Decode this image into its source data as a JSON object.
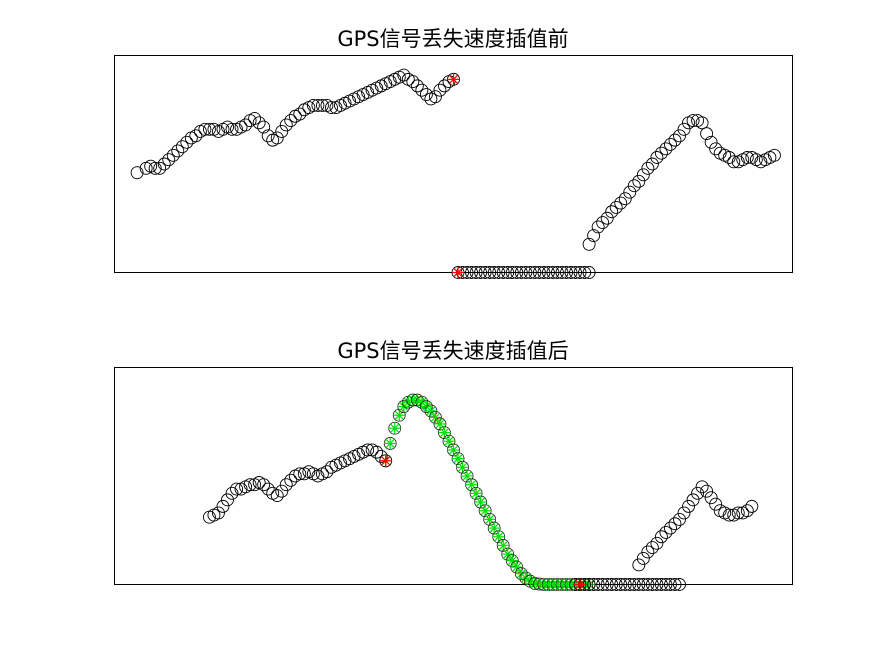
{
  "figure": {
    "background": "#ffffff",
    "marker_colors": {
      "original": "#000000",
      "endpoint": "#ff0000",
      "interpolated": "#00dd00"
    }
  },
  "chart_data": [
    {
      "type": "scatter",
      "title": "GPS信号丢失速度插值前",
      "xlabel": "",
      "ylabel": "",
      "xlim": [
        0,
        150
      ],
      "ylim": [
        0,
        10
      ],
      "axes_visible": false,
      "grid": false,
      "series": [
        {
          "marker": "circle",
          "color": "#000000",
          "x": [
            5,
            7,
            8,
            9,
            10,
            11,
            12,
            13,
            14,
            15,
            16,
            17,
            18,
            19,
            20,
            21,
            22,
            23,
            24,
            25,
            26,
            27,
            28,
            29,
            30,
            31,
            32,
            33,
            34,
            35,
            36,
            37,
            38,
            39,
            40,
            41,
            42,
            43,
            44,
            45,
            46,
            47,
            48,
            49,
            50,
            51,
            52,
            53,
            54,
            55,
            56,
            57,
            58,
            59,
            60,
            61,
            62,
            63,
            64,
            65,
            66,
            67,
            68,
            69,
            70,
            71,
            72,
            73,
            74,
            75
          ],
          "y": [
            4.6,
            4.8,
            4.9,
            4.8,
            4.8,
            5.0,
            5.2,
            5.4,
            5.6,
            5.8,
            6.0,
            6.2,
            6.3,
            6.5,
            6.6,
            6.6,
            6.6,
            6.5,
            6.6,
            6.7,
            6.6,
            6.6,
            6.7,
            6.8,
            7.0,
            7.1,
            6.9,
            6.7,
            6.3,
            6.1,
            6.2,
            6.5,
            6.8,
            7.0,
            7.2,
            7.3,
            7.5,
            7.6,
            7.7,
            7.7,
            7.7,
            7.7,
            7.6,
            7.6,
            7.7,
            7.8,
            7.9,
            8.0,
            8.1,
            8.2,
            8.3,
            8.4,
            8.5,
            8.6,
            8.7,
            8.8,
            8.9,
            9.0,
            9.1,
            8.9,
            8.8,
            8.6,
            8.4,
            8.2,
            8.0,
            8.1,
            8.4,
            8.6,
            8.8,
            8.9
          ]
        },
        {
          "marker": "circle",
          "color": "#000000",
          "x": [
            76,
            77,
            78,
            79,
            80,
            81,
            82,
            83,
            84,
            85,
            86,
            87,
            88,
            89,
            90,
            91,
            92,
            93,
            94,
            95,
            96,
            97,
            98,
            99,
            100,
            101,
            102,
            103,
            104,
            105
          ],
          "y": [
            0,
            0,
            0,
            0,
            0,
            0,
            0,
            0,
            0,
            0,
            0,
            0,
            0,
            0,
            0,
            0,
            0,
            0,
            0,
            0,
            0,
            0,
            0,
            0,
            0,
            0,
            0,
            0,
            0,
            0
          ]
        },
        {
          "marker": "circle",
          "color": "#000000",
          "x": [
            105,
            106,
            107,
            108,
            109,
            110,
            111,
            112,
            113,
            114,
            115,
            116,
            117,
            118,
            119,
            120,
            121,
            122,
            123,
            124,
            125,
            126,
            127,
            128,
            129,
            130,
            131,
            132,
            133,
            134,
            135,
            136,
            137,
            138,
            139,
            140,
            141,
            142,
            143,
            144,
            145,
            146
          ],
          "y": [
            1.3,
            1.7,
            2.1,
            2.3,
            2.5,
            2.8,
            3.0,
            3.2,
            3.4,
            3.7,
            4.0,
            4.2,
            4.5,
            4.8,
            5.0,
            5.3,
            5.5,
            5.7,
            5.9,
            6.1,
            6.3,
            6.6,
            6.9,
            7.0,
            7.0,
            6.9,
            6.4,
            6.0,
            5.7,
            5.5,
            5.4,
            5.3,
            5.1,
            5.1,
            5.2,
            5.3,
            5.3,
            5.2,
            5.1,
            5.2,
            5.3,
            5.4
          ]
        },
        {
          "marker": "star",
          "color": "#ff0000",
          "x": [
            75,
            76
          ],
          "y": [
            8.9,
            0
          ]
        }
      ]
    },
    {
      "type": "scatter",
      "title": "GPS信号丢失速度插值后",
      "xlabel": "",
      "ylabel": "",
      "xlim": [
        0,
        150
      ],
      "ylim": [
        0,
        10
      ],
      "axes_visible": false,
      "grid": false,
      "series": [
        {
          "marker": "circle",
          "color": "#000000",
          "x": [
            21,
            22,
            23,
            24,
            25,
            26,
            27,
            28,
            29,
            30,
            31,
            32,
            33,
            34,
            35,
            36,
            37,
            38,
            39,
            40,
            41,
            42,
            43,
            44,
            45,
            46,
            47,
            48,
            49,
            50,
            51,
            52,
            53,
            54,
            55,
            56,
            57,
            58,
            59,
            60
          ],
          "y": [
            3.1,
            3.2,
            3.3,
            3.6,
            3.9,
            4.2,
            4.4,
            4.4,
            4.5,
            4.6,
            4.6,
            4.7,
            4.6,
            4.4,
            4.2,
            4.1,
            4.3,
            4.6,
            4.8,
            5.0,
            5.1,
            5.1,
            5.2,
            5.1,
            5.0,
            5.1,
            5.2,
            5.4,
            5.5,
            5.6,
            5.7,
            5.8,
            5.9,
            6.0,
            6.1,
            6.2,
            6.2,
            6.1,
            5.9,
            5.7
          ]
        },
        {
          "marker": "circle+star",
          "color": "#00dd00",
          "x": [
            60,
            61,
            62,
            63,
            64,
            65,
            66,
            67,
            68,
            69,
            70,
            71,
            72,
            73,
            74,
            75,
            76,
            77,
            78,
            79,
            80,
            81,
            82,
            83,
            84,
            85,
            86,
            87,
            88,
            89,
            90,
            91,
            92,
            93,
            94,
            95,
            96,
            97,
            98,
            99,
            100,
            101,
            102,
            103,
            104,
            105
          ],
          "y": [
            5.7,
            6.5,
            7.2,
            7.8,
            8.2,
            8.4,
            8.5,
            8.5,
            8.4,
            8.2,
            8.0,
            7.7,
            7.4,
            7.0,
            6.6,
            6.2,
            5.8,
            5.4,
            5.0,
            4.6,
            4.2,
            3.8,
            3.4,
            3.0,
            2.6,
            2.2,
            1.8,
            1.4,
            1.1,
            0.8,
            0.5,
            0.3,
            0.15,
            0.05,
            0.02,
            0.0,
            0.0,
            0.0,
            0.0,
            0.0,
            0.0,
            0.0,
            0.0,
            0.0,
            0.0,
            0.0
          ]
        },
        {
          "marker": "circle",
          "color": "#000000",
          "x": [
            102,
            103,
            104,
            105,
            106,
            107,
            108,
            109,
            110,
            111,
            112,
            113,
            114,
            115,
            116,
            117,
            118,
            119,
            120,
            121,
            122,
            123,
            124,
            125
          ],
          "y": [
            0,
            0,
            0,
            0,
            0,
            0,
            0,
            0,
            0,
            0,
            0,
            0,
            0,
            0,
            0,
            0,
            0,
            0,
            0,
            0,
            0,
            0,
            0,
            0
          ]
        },
        {
          "marker": "circle",
          "color": "#000000",
          "x": [
            116,
            117,
            118,
            119,
            120,
            121,
            122,
            123,
            124,
            125,
            126,
            127,
            128,
            129,
            130,
            131,
            132,
            133,
            134,
            135,
            136,
            137,
            138,
            139,
            140,
            141
          ],
          "y": [
            0.9,
            1.2,
            1.5,
            1.7,
            1.9,
            2.2,
            2.4,
            2.6,
            2.8,
            3.0,
            3.3,
            3.6,
            3.9,
            4.2,
            4.5,
            4.3,
            4.0,
            3.7,
            3.4,
            3.3,
            3.2,
            3.2,
            3.3,
            3.3,
            3.4,
            3.6
          ]
        },
        {
          "marker": "star",
          "color": "#ff0000",
          "x": [
            60,
            103
          ],
          "y": [
            5.7,
            0
          ]
        }
      ]
    }
  ]
}
